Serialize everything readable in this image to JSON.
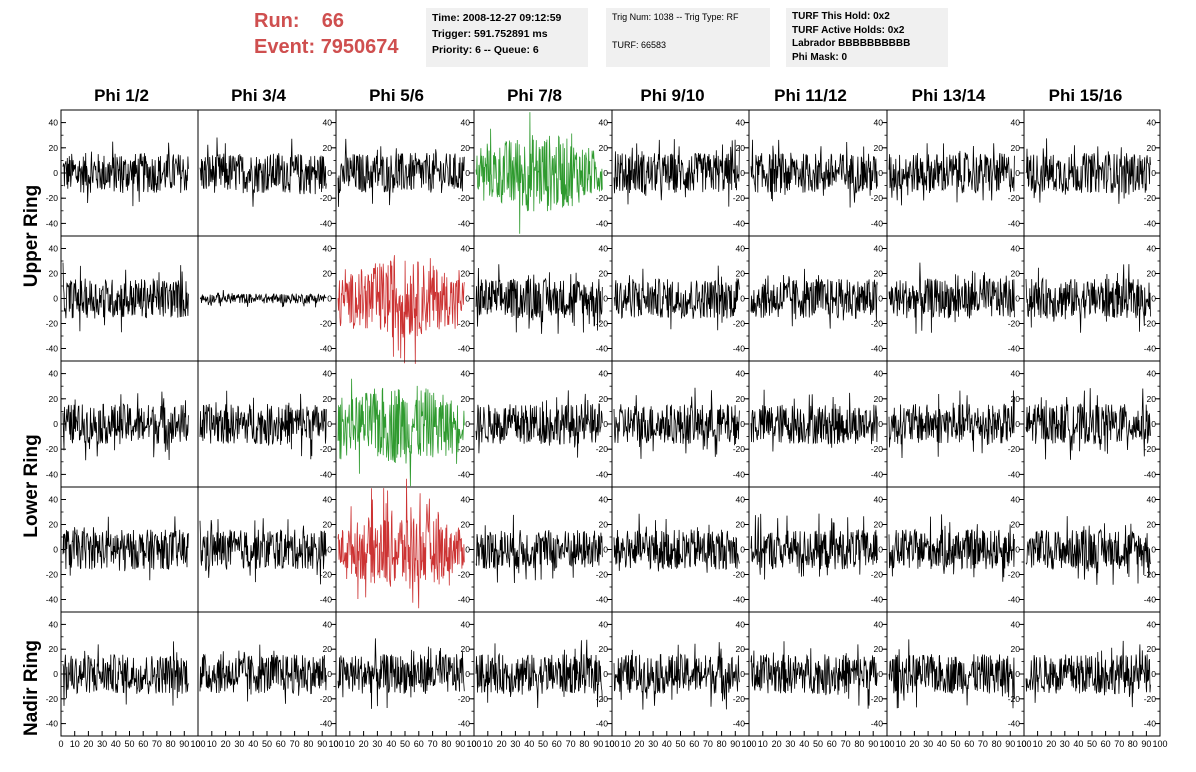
{
  "header": {
    "run_label": "Run:",
    "run_value": "66",
    "event_label": "Event:",
    "event_value": "7950674"
  },
  "info_box_1": {
    "time": "Time: 2008-12-27 09:12:59",
    "trigger": "Trigger: 591.752891 ms",
    "priority": "Priority: 6 -- Queue: 6"
  },
  "info_box_2": {
    "trig": "Trig Num: 1038 -- Trig Type: RF",
    "turf": "TURF: 66583"
  },
  "info_box_3": {
    "hold": "TURF This Hold: 0x2",
    "active": "TURF Active Holds: 0x2",
    "labrador": "Labrador BBBBBBBBBB",
    "phimask": "Phi Mask: 0"
  },
  "phi_columns": [
    "Phi 1/2",
    "Phi 3/4",
    "Phi 5/6",
    "Phi 7/8",
    "Phi 9/10",
    "Phi 11/12",
    "Phi 13/14",
    "Phi 15/16"
  ],
  "rings": {
    "upper": "Upper Ring",
    "lower": "Lower Ring",
    "nadir": "Nadir Ring"
  },
  "y_ticks": [
    "40",
    "20",
    "0",
    "-20",
    "-40"
  ],
  "x_ticks": [
    "0",
    "10",
    "20",
    "30",
    "40",
    "50",
    "60",
    "70",
    "80",
    "90",
    "100"
  ],
  "colors": {
    "green": "#2f9a2f",
    "red": "#cc3333",
    "black": "#000000",
    "accent": "#cf4f4f"
  },
  "chart_data": {
    "type": "line",
    "rows": 5,
    "cols": 8,
    "ylim": [
      -50,
      50
    ],
    "xlim": [
      0,
      100
    ],
    "highlighted": [
      {
        "row": 0,
        "col": 3,
        "color": "green"
      },
      {
        "row": 1,
        "col": 2,
        "color": "red"
      },
      {
        "row": 2,
        "col": 2,
        "color": "green"
      },
      {
        "row": 3,
        "col": 2,
        "color": "red"
      }
    ],
    "quiet_panels": [
      {
        "row": 1,
        "col": 1
      }
    ]
  }
}
